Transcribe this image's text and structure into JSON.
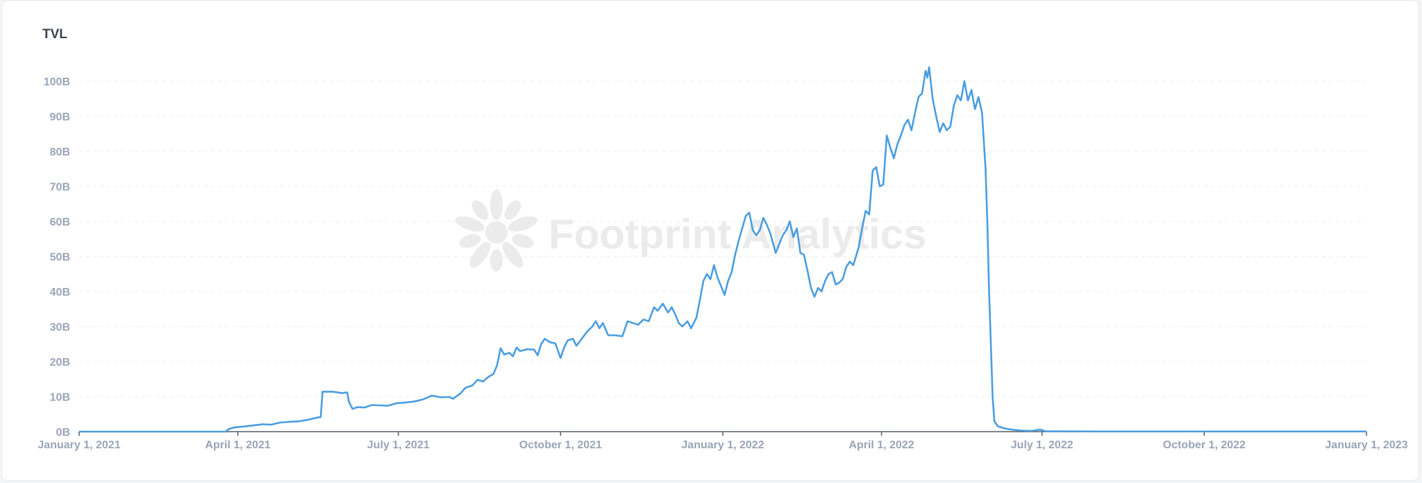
{
  "watermark": "Footprint Analytics",
  "colors": {
    "line": "#4a9de0",
    "grid": "#e9ecf1",
    "tick": "#9aa4b8",
    "axis": "#555b66"
  },
  "chart_data": {
    "type": "line",
    "title": "TVL",
    "xlabel": "",
    "ylabel": "",
    "ylim": [
      0,
      100
    ],
    "y_unit": "B",
    "grid": true,
    "y_ticks": [
      {
        "value": 0,
        "label": "0B"
      },
      {
        "value": 10,
        "label": "10B"
      },
      {
        "value": 20,
        "label": "20B"
      },
      {
        "value": 30,
        "label": "30B"
      },
      {
        "value": 40,
        "label": "40B"
      },
      {
        "value": 50,
        "label": "50B"
      },
      {
        "value": 60,
        "label": "60B"
      },
      {
        "value": 70,
        "label": "70B"
      },
      {
        "value": 80,
        "label": "80B"
      },
      {
        "value": 90,
        "label": "90B"
      },
      {
        "value": 100,
        "label": "100B"
      }
    ],
    "xlim": [
      "2021-01-01",
      "2023-01-01"
    ],
    "x_ticks": [
      {
        "date": "2021-01-01",
        "label": "January 1, 2021"
      },
      {
        "date": "2021-04-01",
        "label": "April 1, 2021"
      },
      {
        "date": "2021-07-01",
        "label": "July 1, 2021"
      },
      {
        "date": "2021-10-01",
        "label": "October 1, 2021"
      },
      {
        "date": "2022-01-01",
        "label": "January 1, 2022"
      },
      {
        "date": "2022-04-01",
        "label": "April 1, 2022"
      },
      {
        "date": "2022-07-01",
        "label": "July 1, 2022"
      },
      {
        "date": "2022-10-01",
        "label": "October 1, 2022"
      },
      {
        "date": "2023-01-01",
        "label": "January 1, 2023"
      }
    ],
    "series": [
      {
        "values": [
          [
            "2021-01-01",
            0
          ],
          [
            "2021-03-25",
            0
          ],
          [
            "2021-03-27",
            0.8
          ],
          [
            "2021-03-30",
            1.2
          ],
          [
            "2021-04-05",
            1.5
          ],
          [
            "2021-04-10",
            1.8
          ],
          [
            "2021-04-15",
            2.1
          ],
          [
            "2021-04-20",
            2.0
          ],
          [
            "2021-04-25",
            2.6
          ],
          [
            "2021-04-30",
            2.8
          ],
          [
            "2021-05-05",
            2.9
          ],
          [
            "2021-05-10",
            3.3
          ],
          [
            "2021-05-15",
            3.9
          ],
          [
            "2021-05-18",
            4.2
          ],
          [
            "2021-05-19",
            11.4
          ],
          [
            "2021-05-25",
            11.4
          ],
          [
            "2021-05-30",
            11.0
          ],
          [
            "2021-06-02",
            11.2
          ],
          [
            "2021-06-03",
            8.5
          ],
          [
            "2021-06-05",
            6.5
          ],
          [
            "2021-06-08",
            7.0
          ],
          [
            "2021-06-12",
            6.9
          ],
          [
            "2021-06-16",
            7.6
          ],
          [
            "2021-06-20",
            7.5
          ],
          [
            "2021-06-25",
            7.4
          ],
          [
            "2021-06-30",
            8.1
          ],
          [
            "2021-07-05",
            8.3
          ],
          [
            "2021-07-10",
            8.6
          ],
          [
            "2021-07-15",
            9.2
          ],
          [
            "2021-07-20",
            10.3
          ],
          [
            "2021-07-25",
            9.8
          ],
          [
            "2021-07-30",
            9.9
          ],
          [
            "2021-08-01",
            9.4
          ],
          [
            "2021-08-05",
            10.8
          ],
          [
            "2021-08-08",
            12.5
          ],
          [
            "2021-08-12",
            13.2
          ],
          [
            "2021-08-15",
            14.8
          ],
          [
            "2021-08-18",
            14.3
          ],
          [
            "2021-08-21",
            15.6
          ],
          [
            "2021-08-24",
            16.5
          ],
          [
            "2021-08-26",
            19.0
          ],
          [
            "2021-08-28",
            23.8
          ],
          [
            "2021-08-30",
            22.0
          ],
          [
            "2021-09-02",
            22.5
          ],
          [
            "2021-09-04",
            21.5
          ],
          [
            "2021-09-06",
            24.0
          ],
          [
            "2021-09-08",
            23.0
          ],
          [
            "2021-09-12",
            23.5
          ],
          [
            "2021-09-16",
            23.4
          ],
          [
            "2021-09-18",
            21.8
          ],
          [
            "2021-09-20",
            25.0
          ],
          [
            "2021-09-22",
            26.5
          ],
          [
            "2021-09-25",
            25.5
          ],
          [
            "2021-09-28",
            25.2
          ],
          [
            "2021-10-01",
            21.0
          ],
          [
            "2021-10-03",
            24.0
          ],
          [
            "2021-10-05",
            26.0
          ],
          [
            "2021-10-08",
            26.5
          ],
          [
            "2021-10-10",
            24.5
          ],
          [
            "2021-10-13",
            26.5
          ],
          [
            "2021-10-16",
            28.5
          ],
          [
            "2021-10-19",
            30.0
          ],
          [
            "2021-10-21",
            31.5
          ],
          [
            "2021-10-23",
            29.5
          ],
          [
            "2021-10-25",
            31.0
          ],
          [
            "2021-10-28",
            27.5
          ],
          [
            "2021-11-01",
            27.5
          ],
          [
            "2021-11-05",
            27.2
          ],
          [
            "2021-11-08",
            31.5
          ],
          [
            "2021-11-11",
            31.0
          ],
          [
            "2021-11-14",
            30.5
          ],
          [
            "2021-11-17",
            32.0
          ],
          [
            "2021-11-20",
            31.5
          ],
          [
            "2021-11-23",
            35.5
          ],
          [
            "2021-11-25",
            34.5
          ],
          [
            "2021-11-28",
            36.5
          ],
          [
            "2021-12-01",
            34.0
          ],
          [
            "2021-12-03",
            35.5
          ],
          [
            "2021-12-05",
            33.5
          ],
          [
            "2021-12-07",
            31.0
          ],
          [
            "2021-12-09",
            30.0
          ],
          [
            "2021-12-12",
            31.5
          ],
          [
            "2021-12-14",
            29.5
          ],
          [
            "2021-12-17",
            32.5
          ],
          [
            "2021-12-19",
            37.5
          ],
          [
            "2021-12-21",
            43.0
          ],
          [
            "2021-12-23",
            45.0
          ],
          [
            "2021-12-25",
            43.5
          ],
          [
            "2021-12-27",
            47.5
          ],
          [
            "2021-12-29",
            44.0
          ],
          [
            "2021-12-31",
            41.5
          ],
          [
            "2022-01-02",
            39.0
          ],
          [
            "2022-01-04",
            43.0
          ],
          [
            "2022-01-06",
            45.5
          ],
          [
            "2022-01-08",
            50.5
          ],
          [
            "2022-01-10",
            54.5
          ],
          [
            "2022-01-12",
            58.0
          ],
          [
            "2022-01-14",
            61.5
          ],
          [
            "2022-01-16",
            62.5
          ],
          [
            "2022-01-18",
            57.5
          ],
          [
            "2022-01-20",
            56.0
          ],
          [
            "2022-01-22",
            57.5
          ],
          [
            "2022-01-24",
            61.0
          ],
          [
            "2022-01-26",
            59.0
          ],
          [
            "2022-01-28",
            56.5
          ],
          [
            "2022-01-31",
            51.0
          ],
          [
            "2022-02-02",
            53.5
          ],
          [
            "2022-02-04",
            56.0
          ],
          [
            "2022-02-06",
            57.5
          ],
          [
            "2022-02-08",
            60.0
          ],
          [
            "2022-02-10",
            55.5
          ],
          [
            "2022-02-12",
            58.0
          ],
          [
            "2022-02-14",
            51.0
          ],
          [
            "2022-02-16",
            50.5
          ],
          [
            "2022-02-18",
            46.0
          ],
          [
            "2022-02-20",
            41.0
          ],
          [
            "2022-02-22",
            38.5
          ],
          [
            "2022-02-24",
            41.0
          ],
          [
            "2022-02-26",
            40.0
          ],
          [
            "2022-02-28",
            43.0
          ],
          [
            "2022-03-02",
            45.0
          ],
          [
            "2022-03-04",
            45.5
          ],
          [
            "2022-03-06",
            42.0
          ],
          [
            "2022-03-08",
            42.5
          ],
          [
            "2022-03-10",
            43.5
          ],
          [
            "2022-03-12",
            47.0
          ],
          [
            "2022-03-14",
            48.5
          ],
          [
            "2022-03-16",
            47.5
          ],
          [
            "2022-03-19",
            52.5
          ],
          [
            "2022-03-21",
            58.0
          ],
          [
            "2022-03-23",
            63.0
          ],
          [
            "2022-03-25",
            62.0
          ],
          [
            "2022-03-27",
            74.5
          ],
          [
            "2022-03-29",
            75.5
          ],
          [
            "2022-03-31",
            70.0
          ],
          [
            "2022-04-02",
            70.5
          ],
          [
            "2022-04-04",
            84.5
          ],
          [
            "2022-04-06",
            81.0
          ],
          [
            "2022-04-08",
            78.0
          ],
          [
            "2022-04-10",
            82.0
          ],
          [
            "2022-04-12",
            84.5
          ],
          [
            "2022-04-14",
            87.5
          ],
          [
            "2022-04-16",
            89.0
          ],
          [
            "2022-04-18",
            86.0
          ],
          [
            "2022-04-20",
            91.0
          ],
          [
            "2022-04-22",
            95.5
          ],
          [
            "2022-04-24",
            96.5
          ],
          [
            "2022-04-26",
            103.0
          ],
          [
            "2022-04-27",
            101.0
          ],
          [
            "2022-04-28",
            104.0
          ],
          [
            "2022-04-30",
            95.0
          ],
          [
            "2022-05-02",
            90.0
          ],
          [
            "2022-05-04",
            85.5
          ],
          [
            "2022-05-06",
            88.0
          ],
          [
            "2022-05-08",
            86.0
          ],
          [
            "2022-05-10",
            87.0
          ],
          [
            "2022-05-12",
            93.0
          ],
          [
            "2022-05-14",
            96.0
          ],
          [
            "2022-05-16",
            94.5
          ],
          [
            "2022-05-18",
            100.0
          ],
          [
            "2022-05-20",
            94.5
          ],
          [
            "2022-05-22",
            97.5
          ],
          [
            "2022-05-24",
            92.0
          ],
          [
            "2022-05-26",
            95.5
          ],
          [
            "2022-05-28",
            91.0
          ],
          [
            "2022-05-30",
            75.0
          ],
          [
            "2022-05-31",
            60.0
          ],
          [
            "2022-06-01",
            40.0
          ],
          [
            "2022-06-02",
            25.0
          ],
          [
            "2022-06-03",
            10.0
          ],
          [
            "2022-06-04",
            3.0
          ],
          [
            "2022-06-06",
            1.5
          ],
          [
            "2022-06-10",
            0.9
          ],
          [
            "2022-06-15",
            0.5
          ],
          [
            "2022-06-20",
            0.3
          ],
          [
            "2022-06-25",
            0.2
          ],
          [
            "2022-06-30",
            0.6
          ],
          [
            "2022-07-03",
            0.1
          ],
          [
            "2022-08-01",
            0.05
          ],
          [
            "2023-01-01",
            0.05
          ]
        ]
      }
    ]
  }
}
